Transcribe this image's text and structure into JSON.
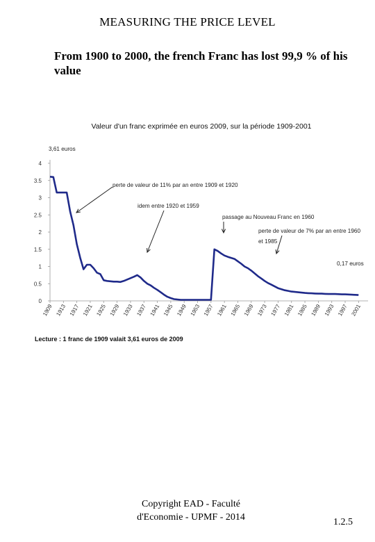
{
  "page": {
    "title": "MEASURING THE PRICE LEVEL",
    "subtitle": "From 1900 to 2000, the french Franc has lost 99,9 % of his value",
    "footer": "Copyright EAD - Faculté d'Economie - UPMF - 2014",
    "page_number": "1.2.5"
  },
  "chart_data": {
    "type": "line",
    "title": "Valeur d'un franc exprimée en euros 2009, sur la période 1909-2001",
    "xlabel": "",
    "ylabel": "",
    "ylim": [
      0,
      4
    ],
    "xlim": [
      1909,
      2003
    ],
    "y_ticks": [
      "0",
      "0.5",
      "1",
      "1.5",
      "2",
      "2.5",
      "3",
      "3.5",
      "4"
    ],
    "x_ticks": [
      "1909",
      "1913",
      "1917",
      "1921",
      "1925",
      "1929",
      "1933",
      "1937",
      "1941",
      "1945",
      "1949",
      "1953",
      "1957",
      "1961",
      "1965",
      "1969",
      "1973",
      "1977",
      "1981",
      "1985",
      "1989",
      "1993",
      "1997",
      "2001"
    ],
    "grid": false,
    "series_color": "#1f2a8a",
    "series": [
      {
        "x": [
          1909,
          1910,
          1911,
          1912,
          1913,
          1914,
          1915,
          1916,
          1917,
          1918,
          1919,
          1920,
          1921,
          1922,
          1923,
          1924,
          1925,
          1926,
          1927,
          1928,
          1929,
          1930,
          1931,
          1932,
          1933,
          1934,
          1935,
          1936,
          1937,
          1938,
          1939,
          1940,
          1941,
          1942,
          1943,
          1944,
          1945,
          1946,
          1947,
          1948,
          1949,
          1950,
          1951,
          1952,
          1953,
          1954,
          1955,
          1956,
          1957,
          1958,
          1959,
          1960,
          1961,
          1962,
          1963,
          1964,
          1965,
          1966,
          1967,
          1968,
          1969,
          1970,
          1971,
          1972,
          1973,
          1974,
          1975,
          1976,
          1977,
          1978,
          1979,
          1980,
          1981,
          1982,
          1983,
          1984,
          1985,
          1986,
          1987,
          1988,
          1989,
          1990,
          1991,
          1992,
          1993,
          1994,
          1995,
          1996,
          1997,
          1998,
          1999,
          2000,
          2001
        ],
        "values": [
          3.61,
          3.6,
          3.15,
          3.15,
          3.15,
          3.15,
          2.6,
          2.2,
          1.65,
          1.25,
          0.92,
          1.05,
          1.05,
          0.95,
          0.82,
          0.78,
          0.6,
          0.58,
          0.57,
          0.56,
          0.56,
          0.55,
          0.58,
          0.62,
          0.66,
          0.7,
          0.75,
          0.68,
          0.58,
          0.5,
          0.45,
          0.38,
          0.32,
          0.25,
          0.18,
          0.12,
          0.08,
          0.05,
          0.04,
          0.03,
          0.03,
          0.03,
          0.03,
          0.03,
          0.03,
          0.03,
          0.03,
          0.03,
          0.03,
          1.5,
          1.45,
          1.38,
          1.32,
          1.28,
          1.25,
          1.22,
          1.15,
          1.08,
          1.0,
          0.95,
          0.88,
          0.8,
          0.72,
          0.65,
          0.58,
          0.52,
          0.47,
          0.42,
          0.37,
          0.34,
          0.31,
          0.29,
          0.27,
          0.26,
          0.25,
          0.24,
          0.23,
          0.225,
          0.22,
          0.215,
          0.21,
          0.21,
          0.205,
          0.2,
          0.2,
          0.2,
          0.195,
          0.19,
          0.19,
          0.185,
          0.18,
          0.175,
          0.17
        ]
      }
    ],
    "annotations": [
      {
        "id": "a1",
        "text": "3,61 euros"
      },
      {
        "id": "a2",
        "text": "perte de valeur de 11% par an entre 1909 et 1920"
      },
      {
        "id": "a3",
        "text": "idem entre 1920 et 1959"
      },
      {
        "id": "a4",
        "text": "passage au Nouveau Franc en 1960"
      },
      {
        "id": "a5_l1",
        "text": "perte de valeur de 7% par an entre 1960"
      },
      {
        "id": "a5_l2",
        "text": "et 1985"
      },
      {
        "id": "a6",
        "text": "0,17 euros"
      }
    ],
    "note": "Lecture : 1 franc de 1909 valait 3,61 euros de 2009"
  }
}
